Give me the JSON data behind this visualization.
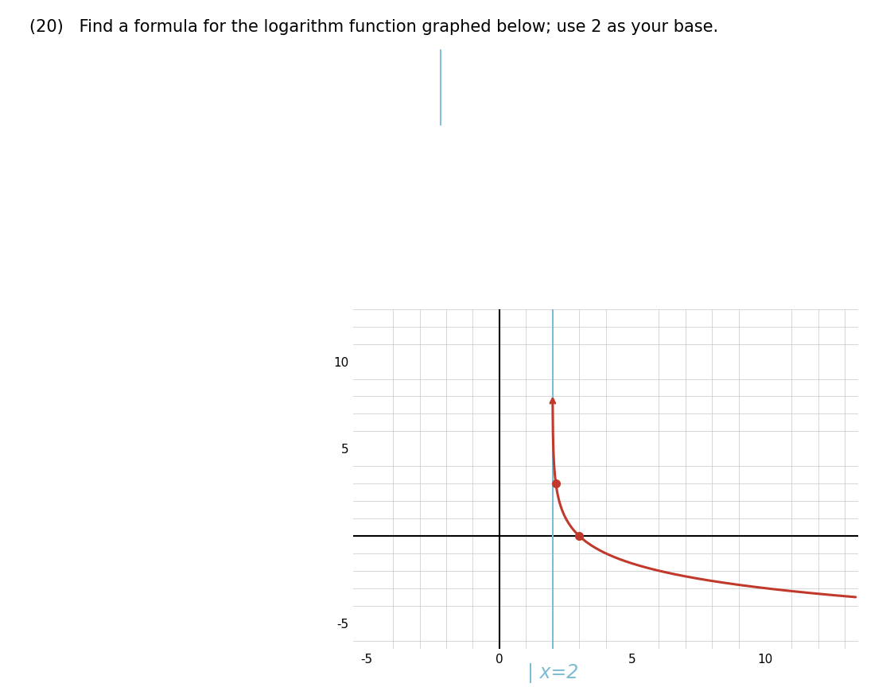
{
  "title_text": "(20)   Find a formula for the logarithm function graphed below; use 2 as your base.",
  "title_fontsize": 15,
  "background_color": "#ffffff",
  "separator_color": "#e0e0e0",
  "xlim": [
    -5.5,
    13.5
  ],
  "ylim": [
    -6.5,
    13.0
  ],
  "xticks": [
    -5,
    0,
    5,
    10
  ],
  "yticks": [
    -5,
    5,
    10
  ],
  "grid_color": "#c8c8c8",
  "axis_color": "#000000",
  "curve_color": "#c0392b",
  "asymptote_x": 2.0,
  "asymptote_color": "#7bbcd4",
  "dot_points": [
    [
      2.125,
      3.0
    ],
    [
      3.0,
      0.0
    ]
  ],
  "dot_color": "#c0392b",
  "annotation_text": "| x=2",
  "annotation_color": "#7bbcd4",
  "annotation_fontsize": 17,
  "cursor_line_color": "#7bbcd4"
}
